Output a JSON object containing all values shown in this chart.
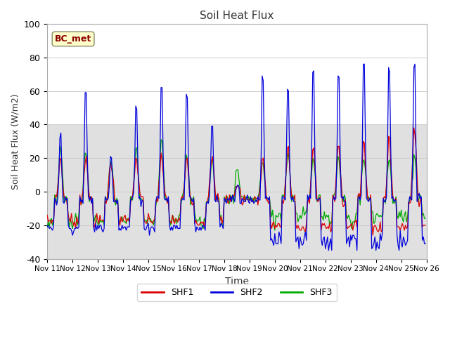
{
  "title": "Soil Heat Flux",
  "xlabel": "Time",
  "ylabel": "Soil Heat Flux (W/m2)",
  "ylim": [
    -40,
    100
  ],
  "xlim": [
    0,
    360
  ],
  "background_color": "#ffffff",
  "plot_bg_color_top": "#ffffff",
  "plot_bg_color_bottom": "#e0e0e0",
  "gray_band_ymax": 40,
  "shf1_color": "#dd0000",
  "shf2_color": "#0000dd",
  "shf3_color": "#00aa00",
  "legend_label": "BC_met",
  "xtick_labels": [
    "Nov 11",
    "Nov 12",
    "Nov 13",
    "Nov 14",
    "Nov 15",
    "Nov 16",
    "Nov 17",
    "Nov 18",
    "Nov 19",
    "Nov 20",
    "Nov 21",
    "Nov 22",
    "Nov 23",
    "Nov 24",
    "Nov 25",
    "Nov 26"
  ],
  "ytick_values": [
    -40,
    -20,
    0,
    20,
    40,
    60,
    80,
    100
  ],
  "total_days": 15,
  "n_points": 360
}
